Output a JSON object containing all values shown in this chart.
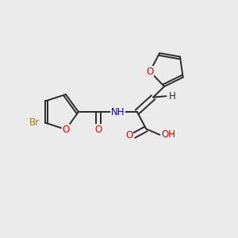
{
  "bg_color": "#ebebeb",
  "bond_color": "#2a2a2a",
  "atom_colors": {
    "O": "#dd0000",
    "N": "#0000cc",
    "Br": "#b87800",
    "H": "#2a2a2a",
    "C": "#2a2a2a"
  },
  "font_size_atom": 8.5,
  "line_width": 1.4,
  "xlim": [
    0,
    10
  ],
  "ylim": [
    0,
    10
  ]
}
